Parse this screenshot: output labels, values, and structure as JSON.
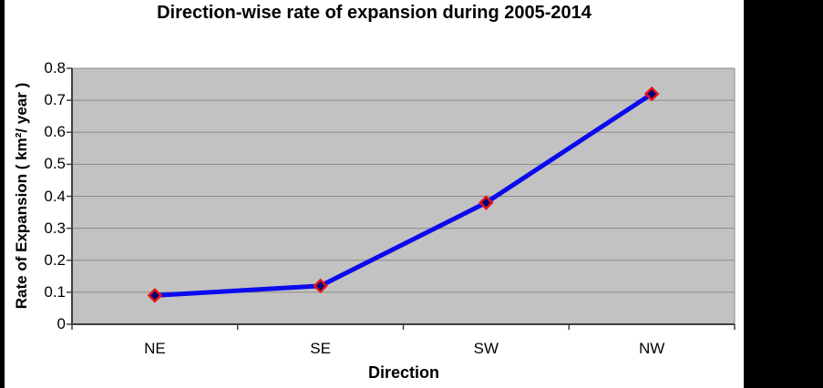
{
  "page": {
    "side_bar_color": "#000000",
    "background_color": "#ffffff"
  },
  "chart_data": {
    "type": "line",
    "title": "Direction-wise rate of expansion during 2005-2014",
    "categories": [
      "NE",
      "SE",
      "SW",
      "NW"
    ],
    "values": [
      0.09,
      0.12,
      0.38,
      0.72
    ],
    "xlabel": "Direction",
    "ylabel": "Rate of Expansion ( km²/ year )",
    "ylim": [
      0,
      0.8
    ],
    "y_tick_labels": [
      "0",
      "0.1",
      "0.2",
      "0.3",
      "0.4",
      "0.5",
      "0.6",
      "0.7",
      "0.8"
    ],
    "grid": true,
    "legend": "none",
    "colors": {
      "plot_background": "#c2c2c2",
      "gridline": "#8a8a8a",
      "axis": "#3f3f3f",
      "border": "#8a8a8a",
      "line": "#0b0bee",
      "marker_fill": "#000080",
      "marker_border": "#e81414",
      "text": "#000000"
    }
  }
}
